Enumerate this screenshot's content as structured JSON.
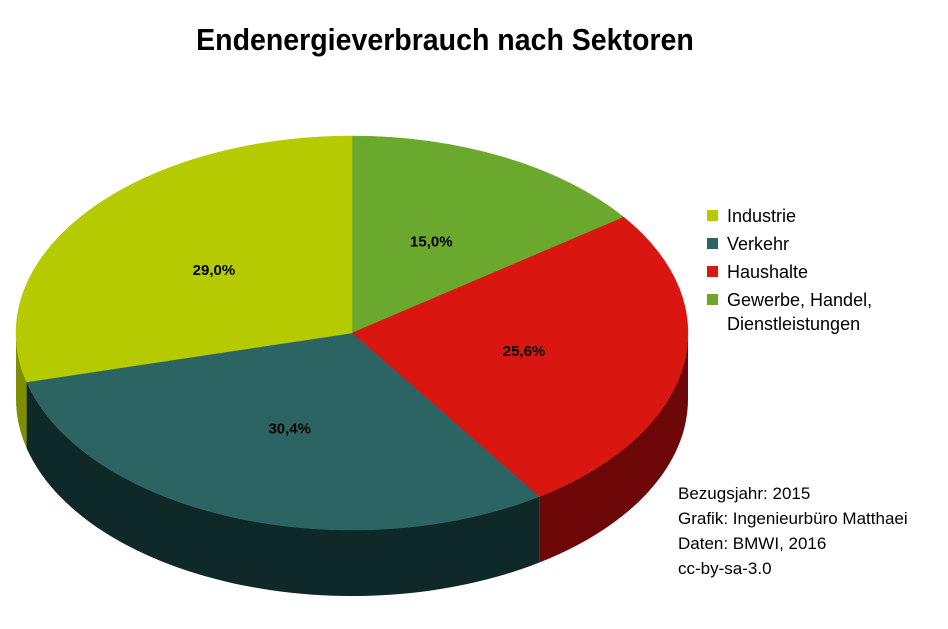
{
  "chart_data": {
    "type": "pie",
    "title": "Endenergieverbrauch nach Sektoren",
    "slices": [
      {
        "name": "Industrie",
        "value": 29.0,
        "label": "29,0%",
        "color": "#b5cb00",
        "side_color": "#7e8e00"
      },
      {
        "name": "Verkehr",
        "value": 30.4,
        "label": "30,4%",
        "color": "#2c6464",
        "side_color": "#0f2828"
      },
      {
        "name": "Haushalte",
        "value": 25.6,
        "label": "25,6%",
        "color": "#d91710",
        "side_color": "#6e0808"
      },
      {
        "name": "Gewerbe, Handel, Dienstleistungen",
        "value": 15.0,
        "label": "15,0%",
        "color": "#6aa82e",
        "side_color": "#3d6a18"
      }
    ],
    "legend_position": "right",
    "style": "3d"
  },
  "legend": {
    "items": [
      {
        "text": "Industrie",
        "color": "#b5cb00"
      },
      {
        "text": "Verkehr",
        "color": "#2c6464"
      },
      {
        "text": "Haushalte",
        "color": "#d91710"
      },
      {
        "text_line1": "Gewerbe, Handel,",
        "text_line2": "Dienstleistungen",
        "color": "#6aa82e"
      }
    ]
  },
  "source_note": {
    "line1": "Bezugsjahr: 2015",
    "line2": "Grafik: Ingenieurbüro Matthaei",
    "line3": "Daten: BMWI, 2016",
    "line4": "cc-by-sa-3.0"
  }
}
